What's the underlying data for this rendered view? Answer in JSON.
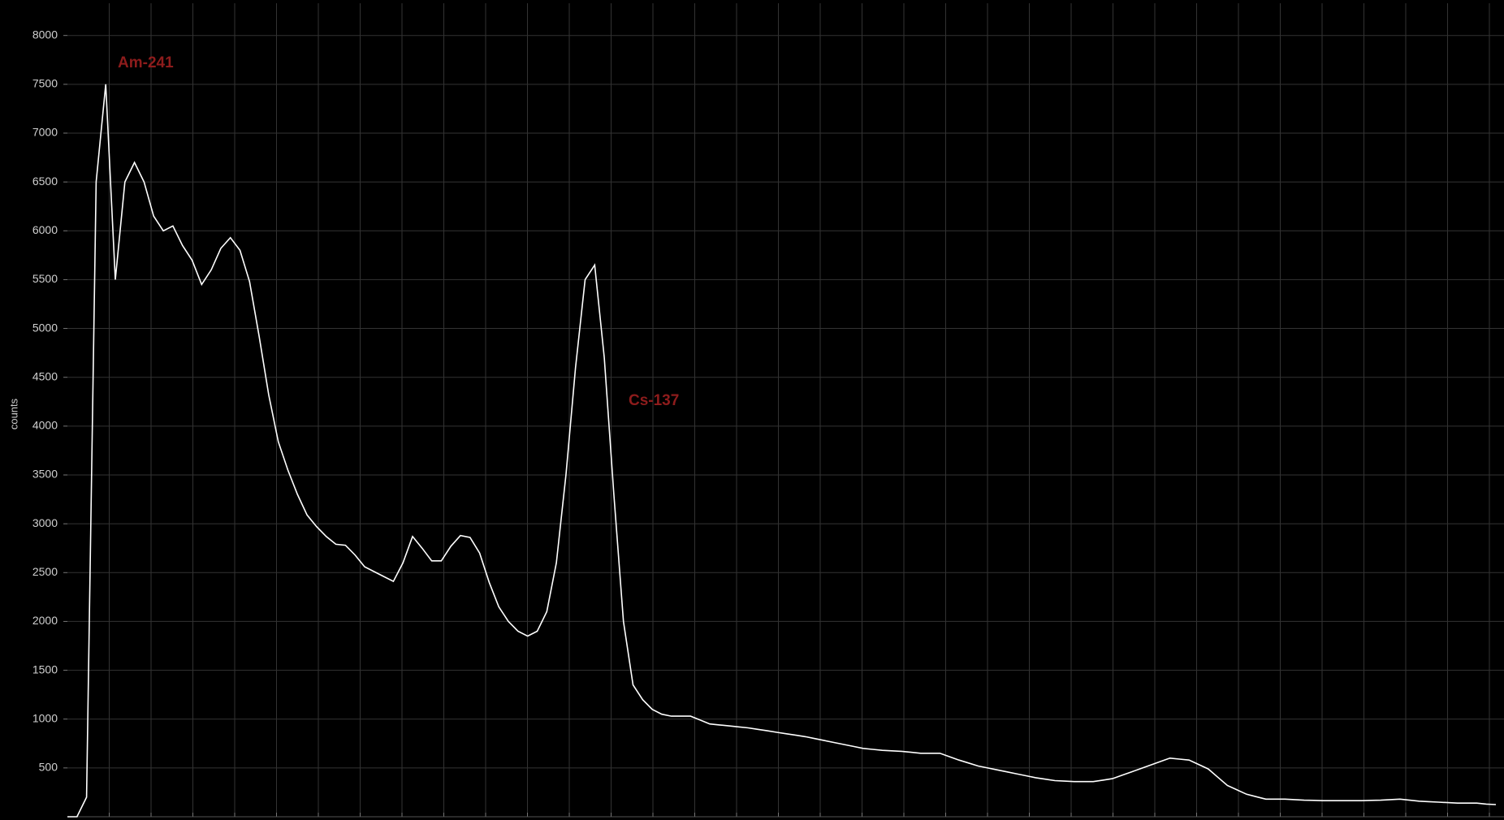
{
  "chart_data": {
    "type": "line",
    "y_label": "counts",
    "color": "#ffffff",
    "grid": true,
    "annotations": [
      "Am-241",
      "Cs-137"
    ],
    "ylim": [
      0,
      8330
    ],
    "yticks": [
      500,
      1000,
      1500,
      2000,
      2500,
      3000,
      3500,
      4000,
      4500,
      5000,
      5500,
      6000,
      6500,
      7000,
      7500,
      8000
    ],
    "values": [
      0,
      0,
      200,
      6500,
      7500,
      5500,
      6500,
      6700,
      6500,
      6150,
      6000,
      6050,
      5850,
      5700,
      5450,
      5600,
      5820,
      5930,
      5800,
      5480,
      4920,
      4320,
      3840,
      3550,
      3300,
      3090,
      2970,
      2870,
      2790,
      2780,
      2680,
      2560,
      2510,
      2460,
      2410,
      2600,
      2870,
      2750,
      2620,
      2620,
      2770,
      2880,
      2860,
      2700,
      2400,
      2150,
      2000,
      1900,
      1850,
      1900,
      2100,
      2600,
      3500,
      4600,
      5500,
      5650,
      4700,
      3300,
      2000,
      1350,
      1200,
      1100,
      1050,
      1030,
      1030,
      1030,
      990,
      950,
      940,
      930,
      920,
      910,
      895,
      880,
      865,
      850,
      835,
      820,
      800,
      780,
      760,
      740,
      720,
      700,
      690,
      680,
      675,
      670,
      660,
      650,
      650,
      650,
      615,
      580,
      550,
      520,
      500,
      480,
      460,
      440,
      420,
      400,
      385,
      370,
      365,
      360,
      360,
      360,
      375,
      390,
      425,
      460,
      495,
      530,
      565,
      600,
      590,
      580,
      535,
      490,
      405,
      320,
      275,
      230,
      205,
      180,
      180,
      180,
      175,
      170,
      168,
      165,
      165,
      165,
      165,
      165,
      168,
      170,
      175,
      180,
      170,
      160,
      155,
      150,
      145,
      140,
      140,
      140,
      130,
      125
    ]
  }
}
